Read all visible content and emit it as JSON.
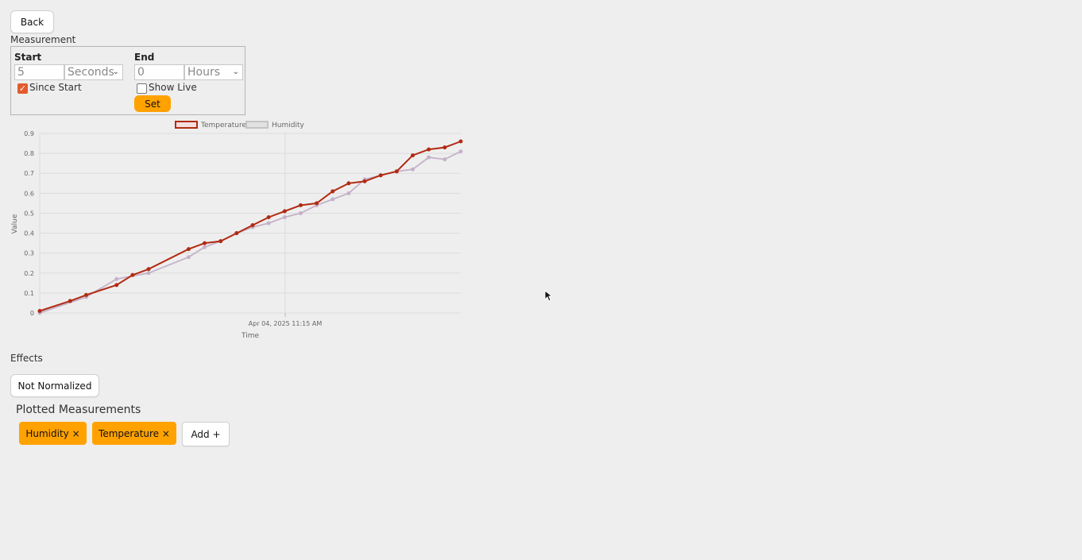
{
  "back_label": "Back",
  "measurement": {
    "section_label": "Measurement",
    "start": {
      "label": "Start",
      "value": "5",
      "unit": "Seconds",
      "checkbox_label": "Since Start",
      "checked": true
    },
    "end": {
      "label": "End",
      "value": "0",
      "unit": "Hours",
      "checkbox_label": "Show Live",
      "checked": false
    },
    "set_label": "Set"
  },
  "effects": {
    "section_label": "Effects",
    "normalize_label": "Not Normalized"
  },
  "plotted": {
    "title": "Plotted Measurements",
    "items": [
      {
        "label": "Humidity ×"
      },
      {
        "label": "Temperature ×"
      }
    ],
    "add_label": "Add +"
  },
  "colors": {
    "accent": "#ffa200",
    "temperature": "#b22a12",
    "humidity": "#c4b2c9"
  },
  "chart_data": {
    "type": "line",
    "xlabel": "Time",
    "ylabel": "Value",
    "x_tick_labels": [
      "Apr 04, 2025 11:15 AM"
    ],
    "y_ticks": [
      "0",
      "0.1",
      "0.2",
      "0.3",
      "0.4",
      "0.5",
      "0.6",
      "0.7",
      "0.8",
      "0.9"
    ],
    "ylim": [
      0,
      0.9
    ],
    "grid": true,
    "legend_position": "top",
    "series": [
      {
        "name": "Temperature",
        "color": "#b22a12",
        "x": [
          0,
          1.9,
          2.9,
          4.8,
          5.8,
          6.8,
          9.3,
          10.3,
          11.3,
          12.3,
          13.3,
          14.3,
          15.3,
          16.3,
          17.3,
          18.3,
          19.3,
          20.3,
          21.3,
          22.3,
          23.3,
          24.3,
          25.3,
          26.3
        ],
        "values": [
          0.01,
          0.06,
          0.09,
          0.14,
          0.19,
          0.22,
          0.32,
          0.35,
          0.36,
          0.4,
          0.44,
          0.48,
          0.51,
          0.54,
          0.55,
          0.61,
          0.65,
          0.66,
          0.69,
          0.71,
          0.79,
          0.82,
          0.83,
          0.86
        ]
      },
      {
        "name": "Humidity",
        "color": "#c4b2c9",
        "x": [
          0,
          2.9,
          4.8,
          6.8,
          9.3,
          10.3,
          11.3,
          12.3,
          13.3,
          14.3,
          15.3,
          16.3,
          17.3,
          18.3,
          19.3,
          20.3,
          21.3,
          22.3,
          23.3,
          24.3,
          25.3,
          26.3
        ],
        "values": [
          0.0,
          0.08,
          0.17,
          0.2,
          0.28,
          0.33,
          0.36,
          0.4,
          0.43,
          0.45,
          0.48,
          0.5,
          0.54,
          0.57,
          0.6,
          0.67,
          0.69,
          0.71,
          0.72,
          0.78,
          0.77,
          0.81
        ]
      }
    ]
  }
}
